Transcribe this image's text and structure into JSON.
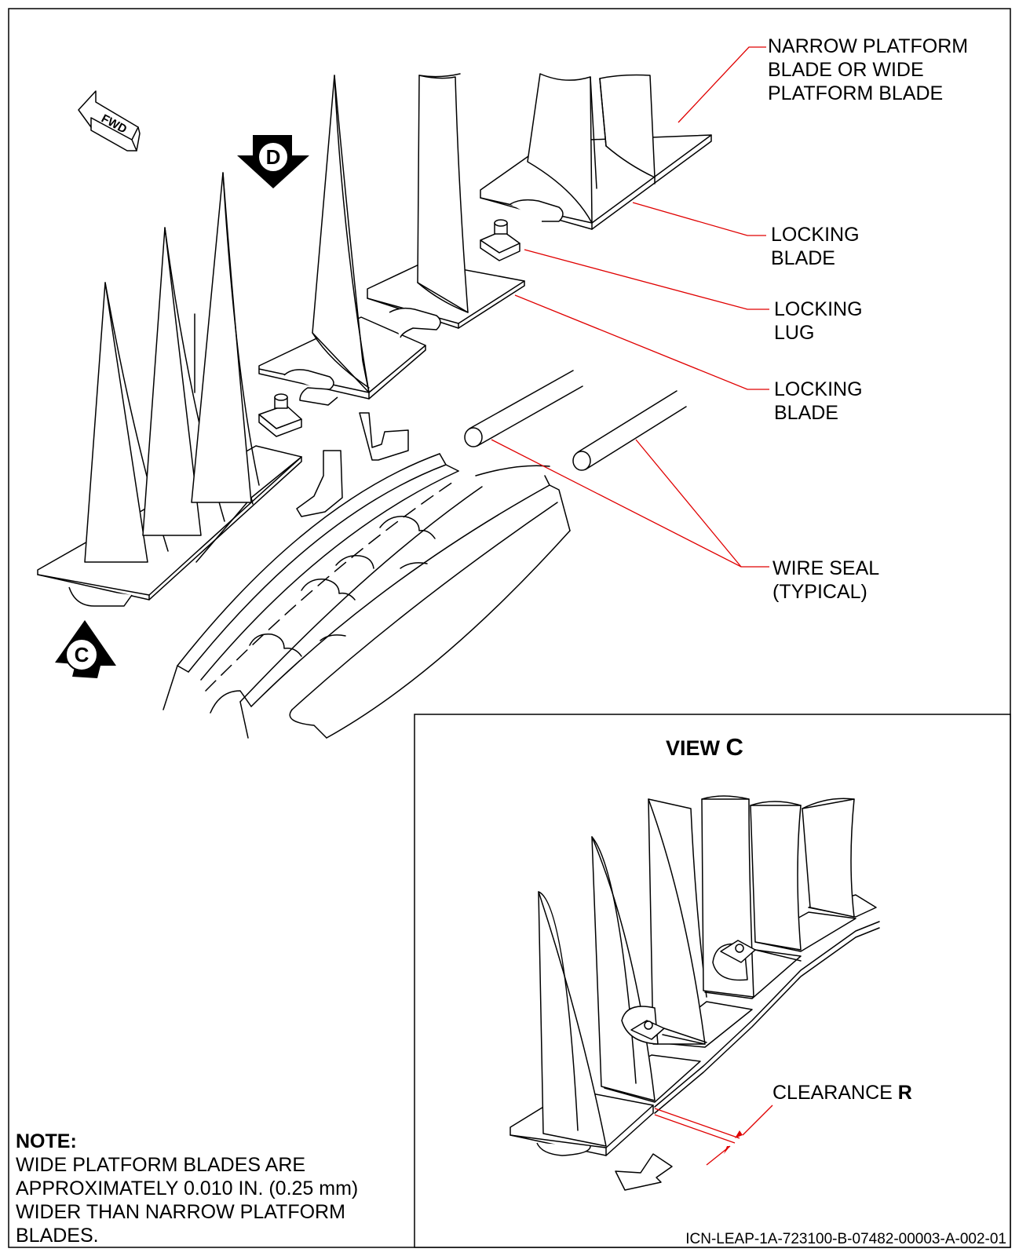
{
  "callouts": {
    "narrow_platform": [
      "NARROW PLATFORM",
      "BLADE OR WIDE",
      "PLATFORM BLADE"
    ],
    "locking_blade_upper": [
      "LOCKING",
      "BLADE"
    ],
    "locking_lug": [
      "LOCKING",
      "LUG"
    ],
    "locking_blade_lower": [
      "LOCKING",
      "BLADE"
    ],
    "wire_seal": [
      "WIRE SEAL",
      "(TYPICAL)"
    ]
  },
  "view_arrows": {
    "d": "D",
    "c": "C",
    "fwd": "FWD"
  },
  "view_c": {
    "title_prefix": "VIEW ",
    "title_letter": "C",
    "clearance_prefix": "CLEARANCE ",
    "clearance_letter": "R"
  },
  "note": {
    "heading": "NOTE:",
    "lines": [
      "WIDE PLATFORM BLADES ARE",
      "APPROXIMATELY 0.010 IN. (0.25 mm)",
      "WIDER THAN NARROW PLATFORM",
      "BLADES."
    ]
  },
  "icn": "ICN-LEAP-1A-723100-B-07482-00003-A-002-01",
  "colors": {
    "leader": "#e00000",
    "line": "#000000",
    "background": "#ffffff"
  }
}
